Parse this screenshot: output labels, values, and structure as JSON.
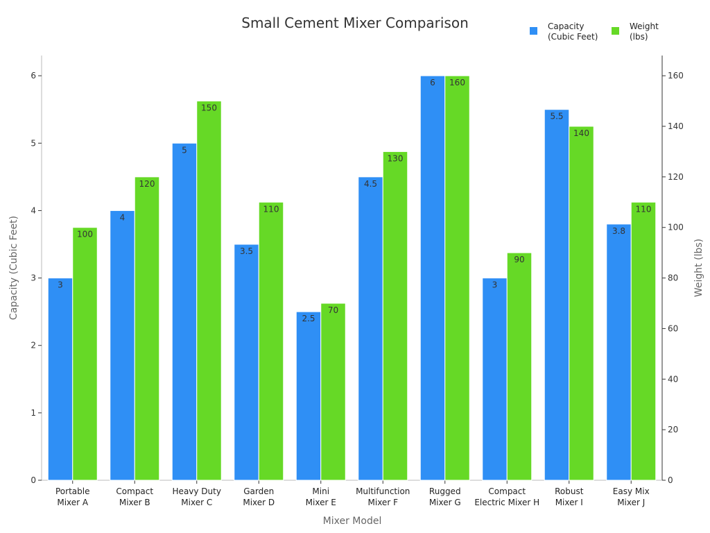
{
  "chart_data": {
    "type": "bar",
    "title": "Small Cement Mixer Comparison",
    "xlabel": "Mixer Model",
    "ylabel_left": "Capacity (Cubic Feet)",
    "ylabel_right": "Weight (lbs)",
    "categories": [
      [
        "Portable",
        "Mixer A"
      ],
      [
        "Compact",
        "Mixer B"
      ],
      [
        "Heavy Duty",
        "Mixer C"
      ],
      [
        "Garden",
        "Mixer D"
      ],
      [
        "Mini",
        "Mixer E"
      ],
      [
        "Multifunction",
        "Mixer F"
      ],
      [
        "Rugged",
        "Mixer G"
      ],
      [
        "Compact",
        "Electric Mixer H"
      ],
      [
        "Robust",
        "Mixer I"
      ],
      [
        "Easy Mix",
        "Mixer J"
      ]
    ],
    "series": [
      {
        "name": [
          "Capacity",
          "(Cubic Feet)"
        ],
        "axis": "left",
        "color": "#2f8ff5",
        "values": [
          3,
          4,
          5,
          3.5,
          2.5,
          4.5,
          6,
          3,
          5.5,
          3.8
        ],
        "labels": [
          "3",
          "4",
          "5",
          "3.5",
          "2.5",
          "4.5",
          "6",
          "3",
          "5.5",
          "3.8"
        ]
      },
      {
        "name": [
          "Weight",
          "(lbs)"
        ],
        "axis": "right",
        "color": "#66d926",
        "values": [
          100,
          120,
          150,
          110,
          70,
          130,
          160,
          90,
          140,
          110
        ],
        "labels": [
          "100",
          "120",
          "150",
          "110",
          "70",
          "130",
          "160",
          "90",
          "140",
          "110"
        ]
      }
    ],
    "ylim_left": [
      0,
      6.3
    ],
    "ylim_right": [
      0,
      168
    ],
    "yticks_left": [
      "0",
      "1",
      "2",
      "3",
      "4",
      "5",
      "6"
    ],
    "yticks_right": [
      "0",
      "20",
      "40",
      "60",
      "80",
      "100",
      "120",
      "140",
      "160"
    ],
    "legend_position": "top-right",
    "grid": false
  }
}
